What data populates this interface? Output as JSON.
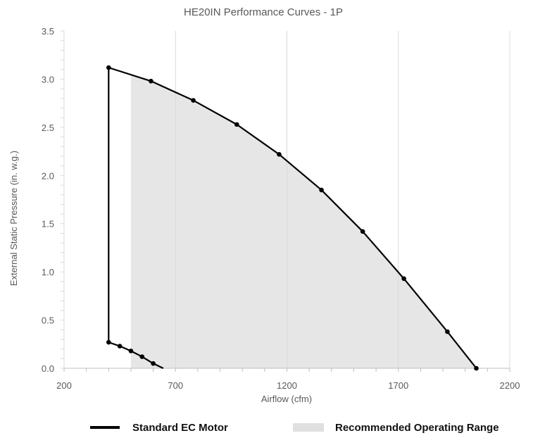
{
  "chart_data": {
    "type": "line",
    "title": "HE20IN Performance Curves - 1P",
    "xlabel": "Airflow (cfm)",
    "ylabel": "External Static Pressure (in. w.g.)",
    "xlim": [
      200,
      2200
    ],
    "ylim": [
      0,
      3.5
    ],
    "xticks": [
      "200",
      "700",
      "1200",
      "1700",
      "2200"
    ],
    "yticks": [
      "0.0",
      "0.5",
      "1.0",
      "1.5",
      "2.0",
      "2.5",
      "3.0",
      "3.5"
    ],
    "grid": true,
    "series": [
      {
        "name": "Standard EC Motor",
        "color": "#000000",
        "x": [
          2050,
          1920,
          1725,
          1540,
          1355,
          1165,
          975,
          780,
          590,
          400,
          400,
          450,
          500,
          550,
          600,
          645
        ],
        "y": [
          0.0,
          0.38,
          0.93,
          1.42,
          1.85,
          2.22,
          2.53,
          2.78,
          2.98,
          3.12,
          0.27,
          0.23,
          0.18,
          0.12,
          0.05,
          0.0
        ],
        "markers": [
          true,
          true,
          true,
          true,
          true,
          true,
          true,
          true,
          true,
          true,
          true,
          true,
          true,
          true,
          true,
          false
        ]
      }
    ],
    "shaded_region": {
      "name": "Recommended Operating Range",
      "color": "#e6e6e6",
      "x": [
        500,
        500,
        590,
        780,
        975,
        1165,
        1355,
        1540,
        1725,
        1920,
        2050
      ],
      "y": [
        0.0,
        3.04,
        2.98,
        2.78,
        2.53,
        2.22,
        1.85,
        1.42,
        0.93,
        0.38,
        0.0
      ]
    },
    "legend": {
      "position": "bottom",
      "items": [
        {
          "label": "Standard EC Motor",
          "type": "line",
          "color": "#000000"
        },
        {
          "label": "Recommended Operating Range",
          "type": "area",
          "color": "#e0e0e0"
        }
      ]
    }
  }
}
